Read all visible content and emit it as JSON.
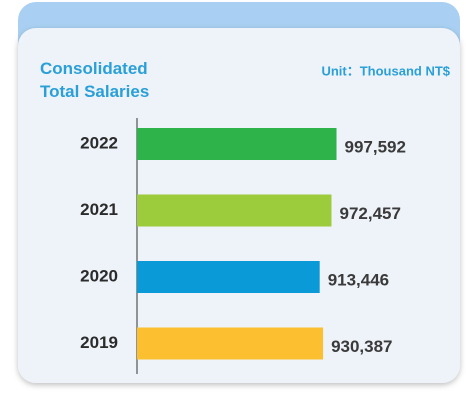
{
  "chart_data": {
    "type": "bar",
    "orientation": "horizontal",
    "title": "Consolidated Total Salaries",
    "unit": "Unit：Thousand NT$",
    "categories": [
      "2022",
      "2021",
      "2020",
      "2019"
    ],
    "values": [
      997592,
      972457,
      913446,
      930387
    ],
    "value_labels": [
      "997,592",
      "972,457",
      "913,446",
      "930,387"
    ],
    "colors": [
      "#2db34a",
      "#9ccb3b",
      "#0b9ad8",
      "#fbbf2f"
    ],
    "xlim": [
      0,
      1000000
    ]
  }
}
